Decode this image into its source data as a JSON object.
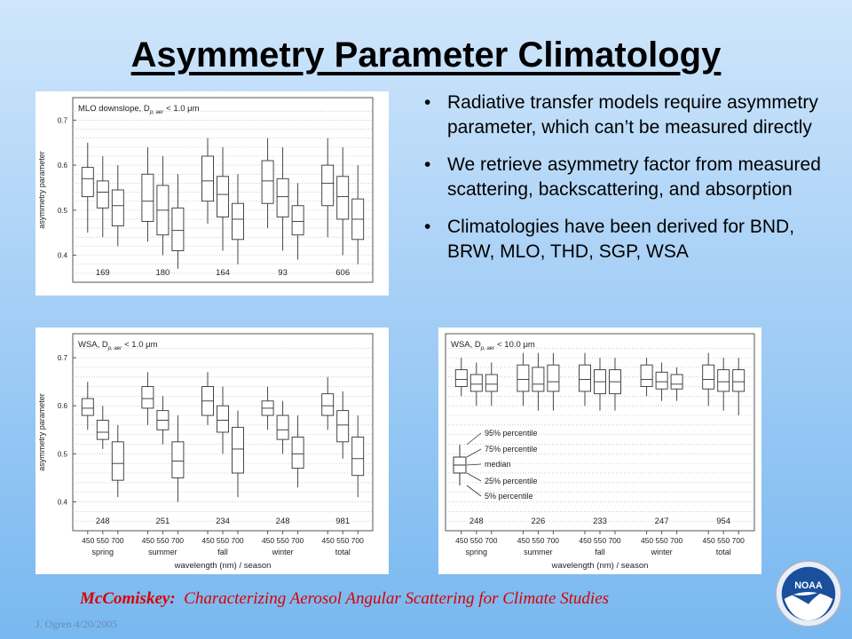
{
  "title": "Asymmetry Parameter Climatology",
  "bullets": [
    "Radiative transfer models require asymmetry parameter, which can’t be measured directly",
    "We retrieve asymmetry factor from measured scattering, backscattering, and absorption",
    "Climatologies have been derived for BND, BRW, MLO, THD, SGP, WSA"
  ],
  "citation": {
    "author": "McComiskey:",
    "text": "Characterizing Aerosol Angular Scattering for Climate Studies"
  },
  "footer_author": "J. Ogren  4/20/2005",
  "logo_text": "NOAA",
  "colors": {
    "logo_blue": "#1a4f9c",
    "citation_red": "#d80000"
  },
  "chart_data": [
    {
      "type": "boxplot",
      "panel_label": "MLO downslope, D",
      "panel_sub": "p, aer",
      "panel_cut": "< 1.0 μm",
      "ylabel": "asymmetry parameter",
      "ylim": [
        0.34,
        0.75
      ],
      "yticks": [
        "0.4",
        "0.5",
        "0.6",
        "0.7"
      ],
      "groups": [
        "",
        "",
        "",
        "",
        ""
      ],
      "counts": [
        "169",
        "180",
        "164",
        "93",
        "606"
      ],
      "boxes": [
        [
          [
            0.45,
            0.53,
            0.57,
            0.595,
            0.65
          ],
          [
            0.44,
            0.505,
            0.54,
            0.565,
            0.62
          ],
          [
            0.42,
            0.465,
            0.51,
            0.545,
            0.6
          ]
        ],
        [
          [
            0.43,
            0.475,
            0.52,
            0.58,
            0.64
          ],
          [
            0.4,
            0.445,
            0.5,
            0.555,
            0.62
          ],
          [
            0.37,
            0.41,
            0.455,
            0.505,
            0.58
          ]
        ],
        [
          [
            0.47,
            0.52,
            0.565,
            0.62,
            0.66
          ],
          [
            0.41,
            0.485,
            0.535,
            0.575,
            0.64
          ],
          [
            0.38,
            0.435,
            0.48,
            0.515,
            0.58
          ]
        ],
        [
          [
            0.46,
            0.515,
            0.565,
            0.61,
            0.66
          ],
          [
            0.41,
            0.485,
            0.53,
            0.57,
            0.64
          ],
          [
            0.39,
            0.445,
            0.475,
            0.51,
            0.56
          ]
        ],
        [
          [
            0.44,
            0.51,
            0.56,
            0.6,
            0.66
          ],
          [
            0.4,
            0.48,
            0.53,
            0.575,
            0.64
          ],
          [
            0.38,
            0.435,
            0.48,
            0.525,
            0.6
          ]
        ]
      ]
    },
    {
      "type": "boxplot",
      "panel_label": "WSA, D",
      "panel_sub": "p, aer",
      "panel_cut": "< 1.0 μm",
      "ylabel": "asymmetry parameter",
      "xlabel": "wavelength (nm) / season",
      "ylim": [
        0.34,
        0.75
      ],
      "yticks": [
        "0.4",
        "0.5",
        "0.6",
        "0.7"
      ],
      "wavelength_labels": [
        "450 550 700",
        "450 550 700",
        "450 550 700",
        "450 550 700",
        "450 550 700"
      ],
      "groups": [
        "spring",
        "summer",
        "fall",
        "winter",
        "total"
      ],
      "counts": [
        "248",
        "251",
        "234",
        "248",
        "981"
      ],
      "boxes": [
        [
          [
            0.55,
            0.58,
            0.595,
            0.615,
            0.65
          ],
          [
            0.51,
            0.53,
            0.545,
            0.57,
            0.6
          ],
          [
            0.41,
            0.445,
            0.48,
            0.525,
            0.56
          ]
        ],
        [
          [
            0.56,
            0.595,
            0.615,
            0.64,
            0.67
          ],
          [
            0.52,
            0.55,
            0.57,
            0.59,
            0.62
          ],
          [
            0.4,
            0.45,
            0.485,
            0.525,
            0.58
          ]
        ],
        [
          [
            0.56,
            0.58,
            0.61,
            0.64,
            0.67
          ],
          [
            0.5,
            0.545,
            0.57,
            0.6,
            0.64
          ],
          [
            0.41,
            0.46,
            0.51,
            0.555,
            0.59
          ]
        ],
        [
          [
            0.55,
            0.58,
            0.595,
            0.61,
            0.64
          ],
          [
            0.5,
            0.53,
            0.55,
            0.58,
            0.61
          ],
          [
            0.43,
            0.47,
            0.5,
            0.535,
            0.58
          ]
        ],
        [
          [
            0.55,
            0.58,
            0.6,
            0.625,
            0.66
          ],
          [
            0.49,
            0.525,
            0.56,
            0.59,
            0.63
          ],
          [
            0.41,
            0.455,
            0.49,
            0.535,
            0.58
          ]
        ]
      ]
    },
    {
      "type": "boxplot",
      "panel_label": "WSA, D",
      "panel_sub": "p, aer",
      "panel_cut": "< 10.0 μm",
      "xlabel": "wavelength (nm) / season",
      "ylim": [
        0.34,
        0.75
      ],
      "yticks": [],
      "wavelength_labels": [
        "450 550 700",
        "450 550 700",
        "450 550 700",
        "450 550 700",
        "450 550 700"
      ],
      "groups": [
        "spring",
        "summer",
        "fall",
        "winter",
        "total"
      ],
      "counts": [
        "248",
        "226",
        "233",
        "247",
        "954"
      ],
      "boxes": [
        [
          [
            0.62,
            0.64,
            0.655,
            0.675,
            0.7
          ],
          [
            0.6,
            0.63,
            0.645,
            0.665,
            0.69
          ],
          [
            0.6,
            0.63,
            0.645,
            0.665,
            0.69
          ]
        ],
        [
          [
            0.6,
            0.63,
            0.655,
            0.685,
            0.71
          ],
          [
            0.59,
            0.63,
            0.645,
            0.68,
            0.71
          ],
          [
            0.59,
            0.63,
            0.65,
            0.685,
            0.71
          ]
        ],
        [
          [
            0.6,
            0.63,
            0.655,
            0.685,
            0.71
          ],
          [
            0.59,
            0.625,
            0.65,
            0.675,
            0.7
          ],
          [
            0.59,
            0.625,
            0.65,
            0.675,
            0.7
          ]
        ],
        [
          [
            0.62,
            0.64,
            0.655,
            0.685,
            0.7
          ],
          [
            0.61,
            0.635,
            0.65,
            0.67,
            0.69
          ],
          [
            0.61,
            0.635,
            0.645,
            0.665,
            0.68
          ]
        ],
        [
          [
            0.6,
            0.635,
            0.655,
            0.685,
            0.71
          ],
          [
            0.59,
            0.63,
            0.65,
            0.675,
            0.7
          ],
          [
            0.58,
            0.63,
            0.65,
            0.675,
            0.7
          ]
        ]
      ],
      "key_labels": [
        "95% percentile",
        "75% percentile",
        "median",
        "25% percentile",
        "5% percentile"
      ]
    }
  ]
}
